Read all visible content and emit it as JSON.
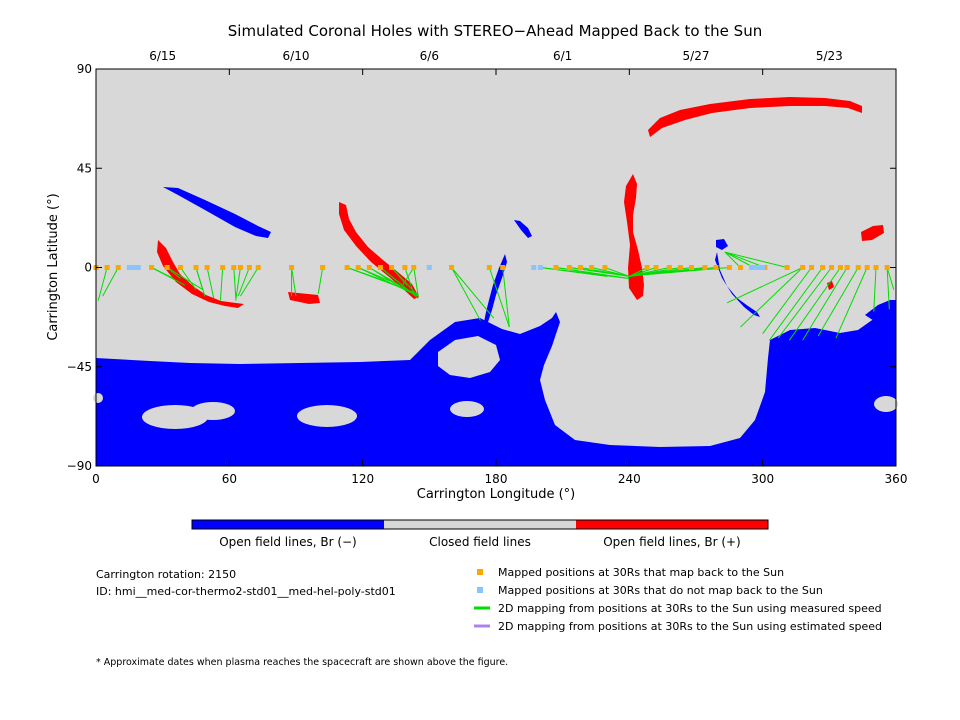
{
  "chart_data": {
    "type": "heatmap",
    "title": "Simulated Coronal Holes with STEREO−Ahead Mapped Back to the Sun",
    "xlabel": "Carrington Longitude (°)",
    "ylabel": "Carrington Latitude (°)",
    "xlim": [
      0,
      360
    ],
    "ylim": [
      -90,
      90
    ],
    "x_ticks": [
      "0",
      "60",
      "120",
      "180",
      "240",
      "300",
      "360"
    ],
    "y_ticks": [
      "90",
      "45",
      "0",
      "−45",
      "−90"
    ],
    "date_ticks": [
      {
        "label": "6/15",
        "lon": 30
      },
      {
        "label": "6/10",
        "lon": 90
      },
      {
        "label": "6/6",
        "lon": 150
      },
      {
        "label": "6/1",
        "lon": 210
      },
      {
        "label": "5/27",
        "lon": 270
      },
      {
        "label": "5/23",
        "lon": 330
      }
    ],
    "colors": {
      "closed": "#d8d8d8",
      "open_negative": "#0000ff",
      "open_positive": "#ff0000",
      "mapped_back": "#ffa500",
      "not_mapped": "#88c4ff",
      "measured_speed": "#00dd00",
      "estimated_speed": "#b080f0"
    },
    "colorbar": {
      "left_label": "Open field lines, Br (−)",
      "mid_label": "Closed field lines",
      "right_label": "Open field lines, Br (+)"
    },
    "info": {
      "rotation": "Carrington rotation: 2150",
      "id": "ID: hmi__med-cor-thermo2-std01__med-hel-poly-std01"
    },
    "legend": [
      {
        "type": "square",
        "color": "#ffa500",
        "text": "Mapped positions at 30Rs that map back to the Sun"
      },
      {
        "type": "square",
        "color": "#88c4ff",
        "text": "Mapped positions at 30Rs that do not map back to the Sun"
      },
      {
        "type": "line",
        "color": "#00dd00",
        "text": "2D mapping from positions at 30Rs to the Sun using measured speed"
      },
      {
        "type": "line",
        "color": "#b080f0",
        "text": "2D mapping from positions at 30Rs to the Sun using estimated speed"
      }
    ],
    "footnote": "* Approximate dates when plasma reaches the spacecraft are shown above the figure.",
    "mappings": [
      {
        "start": [
          0,
          0
        ],
        "ends": [
          [
            0,
            -10
          ],
          [
            0,
            -15
          ]
        ]
      },
      {
        "start": [
          5,
          0
        ],
        "ends": [
          [
            1,
            -15
          ]
        ]
      },
      {
        "start": [
          10,
          0
        ],
        "ends": [
          [
            3,
            -13
          ]
        ]
      },
      {
        "start": [
          25,
          0
        ],
        "ends": [
          [
            35,
            -5
          ],
          [
            40,
            -8
          ]
        ]
      },
      {
        "start": [
          32,
          0
        ],
        "ends": [
          [
            38,
            -5
          ],
          [
            48,
            -10
          ]
        ]
      },
      {
        "start": [
          38,
          0
        ],
        "ends": [
          [
            45,
            -10
          ]
        ]
      },
      {
        "start": [
          45,
          0
        ],
        "ends": [
          [
            49,
            -13
          ],
          [
            48,
            -10
          ]
        ]
      },
      {
        "start": [
          50,
          0
        ],
        "ends": [
          [
            53,
            -14
          ]
        ]
      },
      {
        "start": [
          57,
          0
        ],
        "ends": [
          [
            56,
            -15
          ]
        ]
      },
      {
        "start": [
          62,
          0
        ],
        "ends": [
          [
            63,
            -15
          ]
        ]
      },
      {
        "start": [
          65,
          0
        ],
        "ends": [
          [
            63,
            -14
          ]
        ]
      },
      {
        "start": [
          69,
          0
        ],
        "ends": [
          [
            64,
            -13
          ]
        ]
      },
      {
        "start": [
          73,
          0
        ],
        "ends": [
          [
            65,
            -13
          ]
        ]
      },
      {
        "start": [
          88,
          0
        ],
        "ends": [
          [
            88,
            -13
          ],
          [
            90,
            -13
          ]
        ]
      },
      {
        "start": [
          102,
          0
        ],
        "ends": [
          [
            100,
            -12
          ]
        ]
      },
      {
        "start": [
          113,
          0
        ],
        "ends": [
          [
            145,
            -12
          ],
          [
            130,
            -6
          ]
        ]
      },
      {
        "start": [
          118,
          0
        ],
        "ends": [
          [
            145,
            -13
          ],
          [
            132,
            -6
          ]
        ]
      },
      {
        "start": [
          123,
          0
        ],
        "ends": [
          [
            145,
            -13
          ],
          [
            137,
            -9
          ]
        ]
      },
      {
        "start": [
          128,
          0
        ],
        "ends": [
          [
            145,
            -14
          ],
          [
            139,
            -9
          ]
        ]
      },
      {
        "start": [
          133,
          0
        ],
        "ends": [
          [
            145,
            -13
          ],
          [
            140,
            -8
          ]
        ]
      },
      {
        "start": [
          139,
          0
        ],
        "ends": [
          [
            143,
            -12
          ]
        ]
      },
      {
        "start": [
          143,
          0
        ],
        "ends": [
          [
            145,
            -13
          ],
          [
            138,
            -8
          ]
        ]
      },
      {
        "start": [
          160,
          0
        ],
        "ends": [
          [
            173,
            -24
          ],
          [
            179,
            -23
          ]
        ]
      },
      {
        "start": [
          177,
          0
        ],
        "ends": [
          [
            186,
            -27
          ]
        ]
      },
      {
        "start": [
          183,
          0
        ],
        "ends": [
          [
            186,
            -27
          ]
        ]
      },
      {
        "start": [
          200,
          0
        ],
        "ends": [
          [
            240,
            -5
          ],
          [
            230,
            -4
          ]
        ]
      },
      {
        "start": [
          207,
          0
        ],
        "ends": [
          [
            240,
            -5
          ],
          [
            232,
            -4
          ]
        ]
      },
      {
        "start": [
          213,
          0
        ],
        "ends": [
          [
            240,
            -4
          ],
          [
            235,
            -3
          ]
        ]
      },
      {
        "start": [
          218,
          0
        ],
        "ends": [
          [
            240,
            -4
          ]
        ]
      },
      {
        "start": [
          223,
          0
        ],
        "ends": [
          [
            240,
            -4
          ]
        ]
      },
      {
        "start": [
          229,
          0
        ],
        "ends": [
          [
            240,
            -4
          ]
        ]
      },
      {
        "start": [
          248,
          0
        ],
        "ends": [
          [
            240,
            -4
          ]
        ]
      },
      {
        "start": [
          252,
          0
        ],
        "ends": [
          [
            240,
            -4
          ]
        ]
      },
      {
        "start": [
          258,
          0
        ],
        "ends": [
          [
            240,
            -4
          ]
        ]
      },
      {
        "start": [
          263,
          0
        ],
        "ends": [
          [
            240,
            -4
          ]
        ]
      },
      {
        "start": [
          268,
          0
        ],
        "ends": [
          [
            240,
            -4
          ]
        ]
      },
      {
        "start": [
          274,
          0
        ],
        "ends": [
          [
            240,
            -4
          ]
        ]
      },
      {
        "start": [
          279,
          0
        ],
        "ends": [
          [
            240,
            -4
          ]
        ]
      },
      {
        "start": [
          285,
          0
        ],
        "ends": [
          [
            250,
            -3
          ]
        ]
      },
      {
        "start": [
          290,
          0
        ],
        "ends": [
          [
            283,
            7
          ]
        ]
      },
      {
        "start": [
          296,
          0
        ],
        "ends": [
          [
            283,
            7
          ]
        ]
      },
      {
        "start": [
          301,
          0
        ],
        "ends": [
          [
            283,
            7
          ]
        ]
      },
      {
        "start": [
          311,
          0
        ],
        "ends": [
          [
            283,
            7
          ]
        ]
      },
      {
        "start": [
          318,
          0
        ],
        "ends": [
          [
            284,
            -16
          ],
          [
            290,
            -27
          ]
        ]
      },
      {
        "start": [
          322,
          0
        ],
        "ends": [
          [
            300,
            -30
          ]
        ]
      },
      {
        "start": [
          327,
          0
        ],
        "ends": [
          [
            303,
            -33
          ]
        ]
      },
      {
        "start": [
          331,
          0
        ],
        "ends": [
          [
            307,
            -32
          ]
        ]
      },
      {
        "start": [
          335,
          0
        ],
        "ends": [
          [
            312,
            -33
          ]
        ]
      },
      {
        "start": [
          338,
          0
        ],
        "ends": [
          [
            318,
            -33
          ]
        ]
      },
      {
        "start": [
          343,
          0
        ],
        "ends": [
          [
            325,
            -31
          ]
        ]
      },
      {
        "start": [
          347,
          0
        ],
        "ends": [
          [
            333,
            -32
          ]
        ]
      },
      {
        "start": [
          351,
          0
        ],
        "ends": [
          [
            350,
            -20
          ]
        ]
      },
      {
        "start": [
          356,
          0
        ],
        "ends": [
          [
            357,
            -19
          ],
          [
            359,
            -10
          ]
        ]
      }
    ],
    "not_mapped_points": [
      15,
      17,
      19,
      150,
      197,
      200,
      295,
      296,
      298,
      300
    ]
  }
}
